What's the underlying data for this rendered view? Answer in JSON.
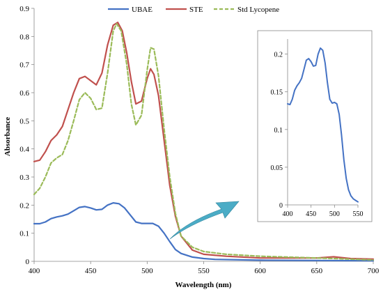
{
  "chart_data": [
    {
      "type": "line",
      "xlabel": "Wavelength (nm)",
      "ylabel": "Absorbance",
      "xlim": [
        400,
        700
      ],
      "ylim": [
        0,
        0.9
      ],
      "x_ticks": [
        "400",
        "450",
        "500",
        "550",
        "600",
        "650",
        "700"
      ],
      "y_ticks": [
        "0",
        "0.1",
        "0.2",
        "0.3",
        "0.4",
        "0.5",
        "0.6",
        "0.7",
        "0.8",
        "0.9"
      ],
      "legend_placement": "top",
      "series": [
        {
          "name": "UBAE",
          "color": "#4472c4",
          "style": "solid",
          "points": [
            [
              400,
              0.134
            ],
            [
              405,
              0.134
            ],
            [
              410,
              0.14
            ],
            [
              415,
              0.152
            ],
            [
              420,
              0.158
            ],
            [
              425,
              0.162
            ],
            [
              430,
              0.168
            ],
            [
              435,
              0.18
            ],
            [
              440,
              0.192
            ],
            [
              445,
              0.195
            ],
            [
              450,
              0.19
            ],
            [
              455,
              0.183
            ],
            [
              460,
              0.185
            ],
            [
              465,
              0.2
            ],
            [
              470,
              0.208
            ],
            [
              475,
              0.205
            ],
            [
              480,
              0.19
            ],
            [
              485,
              0.165
            ],
            [
              490,
              0.14
            ],
            [
              495,
              0.135
            ],
            [
              500,
              0.135
            ],
            [
              505,
              0.135
            ],
            [
              510,
              0.125
            ],
            [
              515,
              0.1
            ],
            [
              520,
              0.07
            ],
            [
              525,
              0.042
            ],
            [
              530,
              0.028
            ],
            [
              540,
              0.015
            ],
            [
              550,
              0.01
            ],
            [
              560,
              0.007
            ],
            [
              600,
              0.004
            ],
            [
              650,
              0.003
            ],
            [
              700,
              0.002
            ]
          ]
        },
        {
          "name": "STE",
          "color": "#c0504d",
          "style": "solid",
          "points": [
            [
              400,
              0.355
            ],
            [
              405,
              0.36
            ],
            [
              410,
              0.39
            ],
            [
              415,
              0.43
            ],
            [
              420,
              0.45
            ],
            [
              425,
              0.48
            ],
            [
              430,
              0.54
            ],
            [
              435,
              0.6
            ],
            [
              440,
              0.65
            ],
            [
              445,
              0.658
            ],
            [
              450,
              0.643
            ],
            [
              455,
              0.628
            ],
            [
              460,
              0.67
            ],
            [
              465,
              0.77
            ],
            [
              470,
              0.84
            ],
            [
              474,
              0.85
            ],
            [
              478,
              0.82
            ],
            [
              482,
              0.74
            ],
            [
              486,
              0.64
            ],
            [
              490,
              0.56
            ],
            [
              495,
              0.57
            ],
            [
              500,
              0.65
            ],
            [
              503,
              0.685
            ],
            [
              506,
              0.665
            ],
            [
              510,
              0.59
            ],
            [
              515,
              0.43
            ],
            [
              520,
              0.27
            ],
            [
              525,
              0.16
            ],
            [
              530,
              0.09
            ],
            [
              540,
              0.04
            ],
            [
              550,
              0.025
            ],
            [
              570,
              0.018
            ],
            [
              600,
              0.012
            ],
            [
              650,
              0.012
            ],
            [
              665,
              0.016
            ],
            [
              680,
              0.01
            ],
            [
              700,
              0.008
            ]
          ]
        },
        {
          "name": "Std Lycopene",
          "color": "#9bbb59",
          "style": "dashed",
          "points": [
            [
              400,
              0.238
            ],
            [
              405,
              0.26
            ],
            [
              410,
              0.3
            ],
            [
              415,
              0.35
            ],
            [
              420,
              0.368
            ],
            [
              425,
              0.38
            ],
            [
              430,
              0.43
            ],
            [
              435,
              0.5
            ],
            [
              440,
              0.575
            ],
            [
              445,
              0.6
            ],
            [
              450,
              0.58
            ],
            [
              455,
              0.54
            ],
            [
              460,
              0.545
            ],
            [
              465,
              0.67
            ],
            [
              470,
              0.82
            ],
            [
              473,
              0.845
            ],
            [
              477,
              0.82
            ],
            [
              482,
              0.7
            ],
            [
              486,
              0.56
            ],
            [
              490,
              0.485
            ],
            [
              495,
              0.52
            ],
            [
              500,
              0.68
            ],
            [
              503,
              0.76
            ],
            [
              506,
              0.755
            ],
            [
              510,
              0.66
            ],
            [
              515,
              0.47
            ],
            [
              520,
              0.3
            ],
            [
              525,
              0.17
            ],
            [
              530,
              0.09
            ],
            [
              540,
              0.05
            ],
            [
              550,
              0.035
            ],
            [
              570,
              0.025
            ],
            [
              600,
              0.018
            ],
            [
              650,
              0.012
            ],
            [
              665,
              0.01
            ],
            [
              700,
              0.005
            ]
          ]
        }
      ]
    },
    {
      "type": "line",
      "xlabel": "",
      "ylabel": "",
      "xlim": [
        400,
        550
      ],
      "ylim": [
        0,
        0.22
      ],
      "x_ticks": [
        "400",
        "450",
        "500",
        "550"
      ],
      "y_ticks": [
        "0",
        "0.05",
        "0.1",
        "0.15",
        "0.2"
      ],
      "series": [
        {
          "color": "#4472c4",
          "style": "solid",
          "points": [
            [
              400,
              0.134
            ],
            [
              405,
              0.133
            ],
            [
              410,
              0.14
            ],
            [
              415,
              0.152
            ],
            [
              420,
              0.158
            ],
            [
              425,
              0.162
            ],
            [
              430,
              0.168
            ],
            [
              435,
              0.18
            ],
            [
              440,
              0.192
            ],
            [
              445,
              0.194
            ],
            [
              450,
              0.19
            ],
            [
              455,
              0.184
            ],
            [
              460,
              0.185
            ],
            [
              465,
              0.2
            ],
            [
              470,
              0.208
            ],
            [
              475,
              0.205
            ],
            [
              480,
              0.188
            ],
            [
              485,
              0.162
            ],
            [
              490,
              0.14
            ],
            [
              495,
              0.135
            ],
            [
              500,
              0.136
            ],
            [
              505,
              0.134
            ],
            [
              510,
              0.12
            ],
            [
              515,
              0.093
            ],
            [
              520,
              0.06
            ],
            [
              525,
              0.035
            ],
            [
              530,
              0.02
            ],
            [
              535,
              0.012
            ],
            [
              540,
              0.008
            ],
            [
              545,
              0.006
            ],
            [
              550,
              0.004
            ]
          ]
        }
      ]
    }
  ]
}
